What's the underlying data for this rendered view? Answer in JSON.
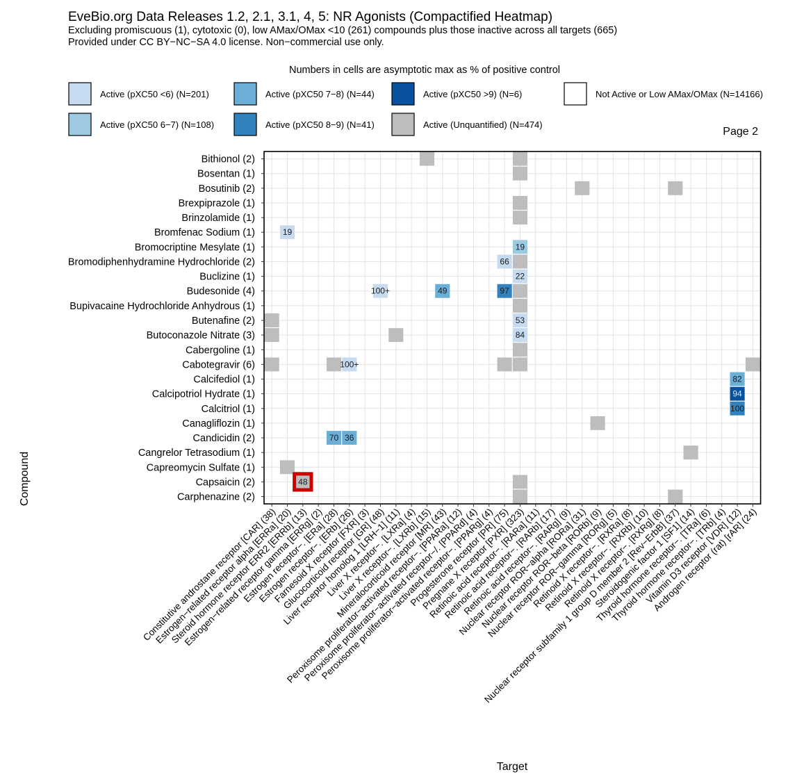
{
  "chart_data": {
    "type": "heatmap",
    "title": "EveBio.org Data Releases 1.2, 2.1, 3.1, 4, 5: NR Agonists (Compactified Heatmap)",
    "subtitle_lines": [
      "Excluding promiscuous (1), cytotoxic (0), low AMax/OMax <10 (261) compounds plus those inactive across all targets (665)",
      "Provided under CC BY−NC−SA 4.0 license. Non−commercial use only."
    ],
    "legend_title": "Numbers in cells are asymptotic max as % of positive control",
    "legend": [
      {
        "key": "c1",
        "label": "Active (pXC50 <6) (N=201)",
        "color": "#c6dbef"
      },
      {
        "key": "c3",
        "label": "Active (pXC50 7−8) (N=44)",
        "color": "#6baed6"
      },
      {
        "key": "c5",
        "label": "Active (pXC50 >9) (N=6)",
        "color": "#08519c"
      },
      {
        "key": "na",
        "label": "Not Active or Low AMax/OMax (N=14166)",
        "color": "#ffffff"
      },
      {
        "key": "c2",
        "label": "Active (pXC50 6−7) (N=108)",
        "color": "#9ecae1"
      },
      {
        "key": "c4",
        "label": "Active (pXC50 8−9) (N=41)",
        "color": "#3182bd"
      },
      {
        "key": "g",
        "label": "Active (Unquantified) (N=474)",
        "color": "#bdbdbd"
      }
    ],
    "page_label": "Page 2",
    "xlabel": "Target",
    "ylabel": "Compound",
    "compounds": [
      "Bithionol (2)",
      "Bosentan (1)",
      "Bosutinib (2)",
      "Brexpiprazole (1)",
      "Brinzolamide (1)",
      "Bromfenac Sodium (1)",
      "Bromocriptine Mesylate (1)",
      "Bromodiphenhydramine Hydrochloride (2)",
      "Buclizine (1)",
      "Budesonide (4)",
      "Bupivacaine Hydrochloride Anhydrous (1)",
      "Butenafine (2)",
      "Butoconazole Nitrate (3)",
      "Cabergoline (1)",
      "Cabotegravir (6)",
      "Calcifediol (1)",
      "Calcipotriol Hydrate (1)",
      "Calcitriol (1)",
      "Canagliflozin (1)",
      "Candicidin (2)",
      "Cangrelor Tetrasodium (1)",
      "Capreomycin Sulfate (1)",
      "Capsaicin (2)",
      "Carphenazine (2)"
    ],
    "targets": [
      "Constitutive androstane receptor [CAR] (38)",
      "Estrogen−related receptor alpha [ERRa] (20)",
      "Steroid hormone receptor ERR2 [ERRb] (13)",
      "Estrogen−related receptor gamma [ERRg] (2)",
      "Estrogen receptor−. [ERa] (28)",
      "Estrogen receptor−. [ERb] (26)",
      "Farnesoid X receptor [FXR] (3)",
      "Glucocorticoid receptor [GR] (48)",
      "Liver receptor homolog 1 [LRH−1] (11)",
      "Liver X receptor−. [LXRa] (4)",
      "Liver X receptor−. [LXRb] (15)",
      "Mineralocorticoid receptor [MR] (43)",
      "Peroxisome proliferator−activated receptor−. [PPARa] (12)",
      "Peroxisome proliferator−activated receptor−/. [PPARd] (4)",
      "Peroxisome proliferator−activated receptor−. [PPARg] (4)",
      "Progesterone receptor [PR] (75)",
      "Pregnane X receptor [PXR] (323)",
      "Retinoic acid receptor−. [RARa] (11)",
      "Retinoic acid receptor−. [RARb] (17)",
      "Retinoic acid receptor−. [RARg] (9)",
      "Nuclear receptor ROR−alpha [RORa] (31)",
      "Nuclear receptor ROR−beta [RORb] (9)",
      "Nuclear receptor ROR−gamma [RORg] (5)",
      "Retinoid X receptor−. [RXRa] (8)",
      "Retinoid X receptor−. [RXRb] (10)",
      "Retinoid X receptor−. [RXRg] (8)",
      "Nuclear receptor subfamily 1 group D member 2 [Rev−ErbB] (37)",
      "Steroidogenic factor 1 [SF1] (14)",
      "Thyroid hormone receptor−. [TRa] (6)",
      "Thyroid hormone receptor−. [TRb] (4)",
      "Vitamin D3 receptor [VDR] (12)",
      "Androgen receptor (rat) [rAR] (24)"
    ],
    "cells": [
      {
        "row": 0,
        "col": 10,
        "cls": "g"
      },
      {
        "row": 0,
        "col": 16,
        "cls": "g"
      },
      {
        "row": 1,
        "col": 16,
        "cls": "g"
      },
      {
        "row": 2,
        "col": 20,
        "cls": "g"
      },
      {
        "row": 2,
        "col": 26,
        "cls": "g"
      },
      {
        "row": 3,
        "col": 16,
        "cls": "g"
      },
      {
        "row": 4,
        "col": 16,
        "cls": "g"
      },
      {
        "row": 5,
        "col": 1,
        "cls": "c1",
        "label": "19"
      },
      {
        "row": 6,
        "col": 16,
        "cls": "c2",
        "label": "19"
      },
      {
        "row": 7,
        "col": 15,
        "cls": "c1",
        "label": "66"
      },
      {
        "row": 7,
        "col": 16,
        "cls": "g"
      },
      {
        "row": 8,
        "col": 16,
        "cls": "c1",
        "label": "22"
      },
      {
        "row": 9,
        "col": 7,
        "cls": "c1",
        "label": "100+"
      },
      {
        "row": 9,
        "col": 11,
        "cls": "c3",
        "label": "49"
      },
      {
        "row": 9,
        "col": 15,
        "cls": "c4",
        "label": "97"
      },
      {
        "row": 9,
        "col": 16,
        "cls": "g"
      },
      {
        "row": 10,
        "col": 16,
        "cls": "g"
      },
      {
        "row": 11,
        "col": 0,
        "cls": "g"
      },
      {
        "row": 11,
        "col": 16,
        "cls": "c1",
        "label": "53"
      },
      {
        "row": 12,
        "col": 0,
        "cls": "g"
      },
      {
        "row": 12,
        "col": 8,
        "cls": "g"
      },
      {
        "row": 12,
        "col": 16,
        "cls": "c1",
        "label": "84"
      },
      {
        "row": 13,
        "col": 16,
        "cls": "g"
      },
      {
        "row": 14,
        "col": 0,
        "cls": "g"
      },
      {
        "row": 14,
        "col": 4,
        "cls": "g"
      },
      {
        "row": 14,
        "col": 5,
        "cls": "c1",
        "label": "100+"
      },
      {
        "row": 14,
        "col": 15,
        "cls": "g"
      },
      {
        "row": 14,
        "col": 16,
        "cls": "g"
      },
      {
        "row": 14,
        "col": 31,
        "cls": "g"
      },
      {
        "row": 15,
        "col": 30,
        "cls": "c3",
        "label": "82"
      },
      {
        "row": 16,
        "col": 30,
        "cls": "c5",
        "label": "94"
      },
      {
        "row": 17,
        "col": 30,
        "cls": "c4",
        "label": "100"
      },
      {
        "row": 18,
        "col": 21,
        "cls": "g"
      },
      {
        "row": 19,
        "col": 4,
        "cls": "c3",
        "label": "70"
      },
      {
        "row": 19,
        "col": 5,
        "cls": "c3",
        "label": "36"
      },
      {
        "row": 20,
        "col": 27,
        "cls": "g"
      },
      {
        "row": 21,
        "col": 1,
        "cls": "g"
      },
      {
        "row": 22,
        "col": 2,
        "cls": "g",
        "label": "48",
        "highlight": true
      },
      {
        "row": 22,
        "col": 16,
        "cls": "g"
      },
      {
        "row": 23,
        "col": 16,
        "cls": "g"
      },
      {
        "row": 23,
        "col": 26,
        "cls": "g"
      }
    ]
  },
  "colors": {
    "highlight": "#cc0000",
    "grid": "#e3e3e3",
    "cell_text": "#1a1a1a"
  }
}
